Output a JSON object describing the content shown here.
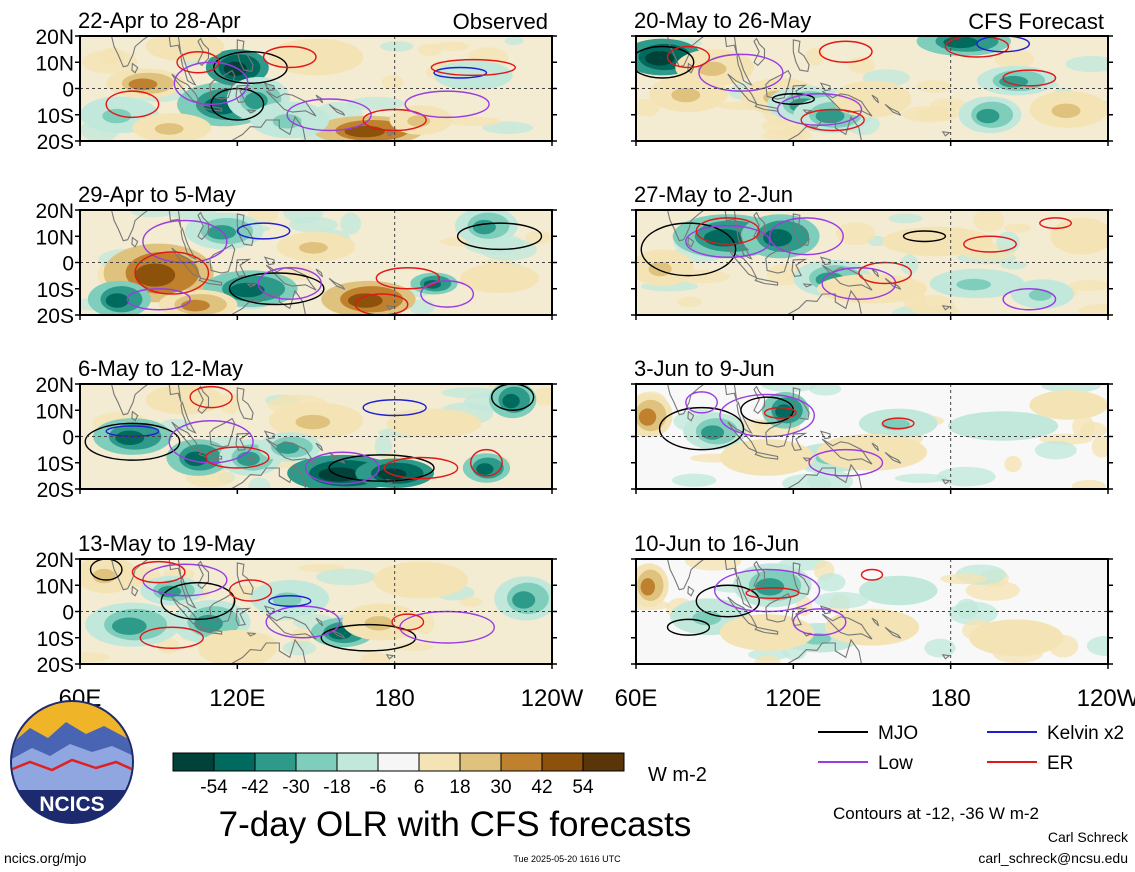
{
  "source_url": "ncics.org/mjo",
  "timestamp": "Tue 2025-05-20 1616 UTC",
  "logo_text": "NCICS",
  "main_title": "7-day OLR with CFS forecasts",
  "units": "W m-2",
  "contour_note": "Contours at -12, -36 W m-2",
  "author": "Carl Schreck",
  "email": "carl_schreck@ncsu.edu",
  "observed_label": "Observed",
  "forecast_label": "CFS Forecast",
  "colors": {
    "mjo": "#000000",
    "kelvin": "#1f1fd0",
    "low": "#9a3ce0",
    "er": "#e01818",
    "colorbar": [
      "#00423a",
      "#006a5e",
      "#2e9a8a",
      "#7fcdbb",
      "#c2e8dc",
      "#f6f6f6",
      "#f4e3b4",
      "#dfc27d",
      "#bf812d",
      "#8c510a",
      "#5a3508"
    ],
    "land": "#777777"
  },
  "chart_data": {
    "type": "heatmap",
    "variable": "OLR anomaly",
    "units": "W m-2",
    "colorbar_ticks": [
      -54,
      -42,
      -30,
      -18,
      -6,
      6,
      18,
      30,
      42,
      54
    ],
    "contour_levels": [
      -12,
      -36
    ],
    "legend": [
      "MJO",
      "Kelvin x2",
      "Low",
      "ER"
    ],
    "x_tick_labels": [
      "60E",
      "120E",
      "180",
      "120W"
    ],
    "y_tick_labels": [
      "20N",
      "10N",
      "0",
      "10S",
      "20S"
    ],
    "xlim_lon": [
      60,
      240
    ],
    "ylim_lat": [
      -20,
      20
    ],
    "panels": [
      {
        "period": "22-Apr to 28-Apr",
        "type": "observed",
        "column": 0,
        "row": 0
      },
      {
        "period": "29-Apr to 5-May",
        "type": "observed",
        "column": 0,
        "row": 1
      },
      {
        "period": "6-May to 12-May",
        "type": "observed",
        "column": 0,
        "row": 2
      },
      {
        "period": "13-May to 19-May",
        "type": "observed",
        "column": 0,
        "row": 3
      },
      {
        "period": "20-May to 26-May",
        "type": "forecast",
        "column": 1,
        "row": 0
      },
      {
        "period": "27-May to 2-Jun",
        "type": "forecast",
        "column": 1,
        "row": 1
      },
      {
        "period": "3-Jun to 9-Jun",
        "type": "forecast",
        "column": 1,
        "row": 2
      },
      {
        "period": "10-Jun to 16-Jun",
        "type": "forecast",
        "column": 1,
        "row": 3
      }
    ]
  }
}
